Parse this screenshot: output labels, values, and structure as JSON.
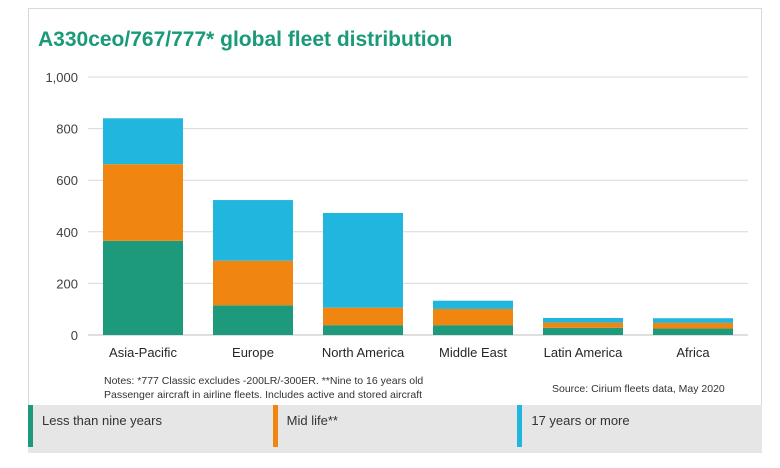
{
  "chart_data": {
    "type": "bar",
    "stacked": true,
    "title": "A330ceo/767/777* global fleet distribution",
    "categories": [
      "Asia-Pacific",
      "Europe",
      "North America",
      "Middle East",
      "Latin America",
      "Africa"
    ],
    "series": [
      {
        "name": "Less than nine years",
        "color": "#1d9a7c",
        "values": [
          365,
          115,
          38,
          38,
          28,
          25
        ]
      },
      {
        "name": "Mid life**",
        "color": "#f0860f",
        "values": [
          297,
          173,
          68,
          63,
          20,
          22
        ]
      },
      {
        "name": "17 years or more",
        "color": "#20b6dd",
        "values": [
          178,
          235,
          367,
          32,
          18,
          18
        ]
      }
    ],
    "y_ticks": [
      "0",
      "200",
      "400",
      "600",
      "800",
      "1,000"
    ],
    "ylim": [
      0,
      1000
    ],
    "grid": true,
    "legend_position": "bottom"
  },
  "notes": "Notes: *777 Classic excludes -200LR/-300ER. **Nine to 16 years old\nPassenger aircraft in airline fleets. Includes active and stored aircraft",
  "source": "Source: Cirium fleets data, May 2020",
  "legend": [
    {
      "label": "Less than nine years",
      "color": "#1d9a7c"
    },
    {
      "label": "Mid life**",
      "color": "#f0860f"
    },
    {
      "label": "17 years or more",
      "color": "#20b6dd"
    }
  ]
}
